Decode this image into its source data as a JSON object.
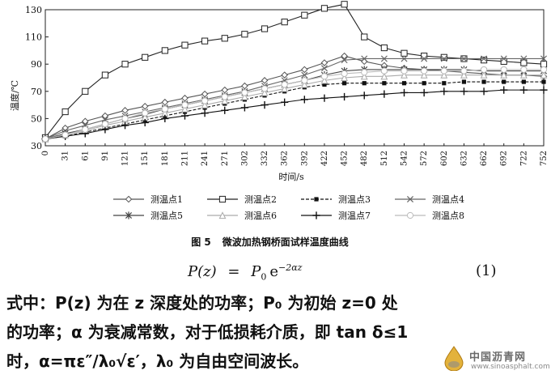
{
  "chart_data": {
    "type": "line",
    "title": "",
    "xlabel": "时间/s",
    "ylabel": "温度/℃",
    "ylim": [
      30,
      130
    ],
    "yticks": [
      30,
      50,
      70,
      90,
      110,
      130
    ],
    "x": [
      0,
      31,
      61,
      91,
      121,
      151,
      181,
      211,
      241,
      271,
      302,
      332,
      362,
      392,
      422,
      452,
      482,
      512,
      542,
      572,
      602,
      632,
      662,
      692,
      722,
      752
    ],
    "grid": false,
    "legend_position": "bottom",
    "series": [
      {
        "name": "测温点1",
        "marker": "diamond",
        "color": "#555555",
        "values": [
          35,
          43,
          48,
          52,
          56,
          59,
          62,
          65,
          68,
          71,
          74,
          78,
          82,
          86,
          91,
          96,
          92,
          89,
          87,
          86,
          85,
          84,
          83,
          82,
          82,
          81
        ]
      },
      {
        "name": "测温点2",
        "marker": "square",
        "color": "#222222",
        "values": [
          36,
          55,
          70,
          82,
          90,
          95,
          100,
          104,
          107,
          109,
          112,
          116,
          121,
          126,
          131,
          134,
          110,
          102,
          98,
          96,
          95,
          94,
          93,
          92,
          91,
          90
        ]
      },
      {
        "name": "测温点3",
        "marker": "filled-square",
        "color": "#111111",
        "values": [
          35,
          37,
          40,
          43,
          46,
          49,
          52,
          55,
          58,
          61,
          64,
          67,
          70,
          73,
          75,
          76,
          76,
          76,
          76,
          76,
          76,
          77,
          77,
          77,
          77,
          77
        ]
      },
      {
        "name": "测温点4",
        "marker": "x",
        "color": "#666666",
        "values": [
          35,
          41,
          45,
          49,
          52,
          55,
          58,
          61,
          64,
          67,
          70,
          74,
          78,
          82,
          87,
          93,
          94,
          94,
          94,
          94,
          94,
          94,
          94,
          94,
          94,
          94
        ]
      },
      {
        "name": "测温点5",
        "marker": "asterisk",
        "color": "#444444",
        "values": [
          35,
          39,
          42,
          46,
          50,
          53,
          57,
          60,
          63,
          66,
          69,
          72,
          75,
          78,
          82,
          85,
          86,
          86,
          86,
          86,
          86,
          86,
          85,
          85,
          85,
          85
        ]
      },
      {
        "name": "测温点6",
        "marker": "triangle",
        "color": "#aaaaaa",
        "values": [
          35,
          38,
          41,
          45,
          48,
          51,
          54,
          57,
          60,
          63,
          66,
          69,
          72,
          75,
          78,
          80,
          81,
          81,
          82,
          82,
          82,
          82,
          82,
          82,
          82,
          82
        ]
      },
      {
        "name": "测温点7",
        "marker": "plus",
        "color": "#111111",
        "values": [
          35,
          37,
          39,
          42,
          45,
          47,
          50,
          52,
          54,
          56,
          58,
          60,
          62,
          64,
          65,
          66,
          67,
          68,
          69,
          69,
          70,
          70,
          70,
          71,
          71,
          71
        ]
      },
      {
        "name": "测温点8",
        "marker": "circle",
        "color": "#bbbbbb",
        "values": [
          35,
          38,
          42,
          46,
          50,
          54,
          57,
          60,
          63,
          66,
          69,
          72,
          75,
          78,
          81,
          83,
          84,
          85,
          85,
          85,
          85,
          85,
          86,
          86,
          86,
          86
        ]
      }
    ]
  },
  "caption": {
    "label": "图 5",
    "text": "微波加热钢桥面试样温度曲线"
  },
  "equation": {
    "lhs": "P(z)",
    "equals": "=",
    "rhs_base": "P",
    "rhs_sub": "0",
    "rhs_e": "e",
    "rhs_exp": "−2αz",
    "number": "(1)"
  },
  "paragraph": {
    "line1": "式中：P(z) 为在 z 深度处的功率；P₀ 为初始 z=0 处",
    "line2": "的功率；α 为衰减常数，对于低损耗介质，即 tan δ≤1",
    "line3": "时，α=πε″/λ₀√ε′，λ₀ 为自由空间波长。"
  },
  "watermark": {
    "name": "中国沥青网",
    "url": "www.sinoasphalt.com"
  }
}
